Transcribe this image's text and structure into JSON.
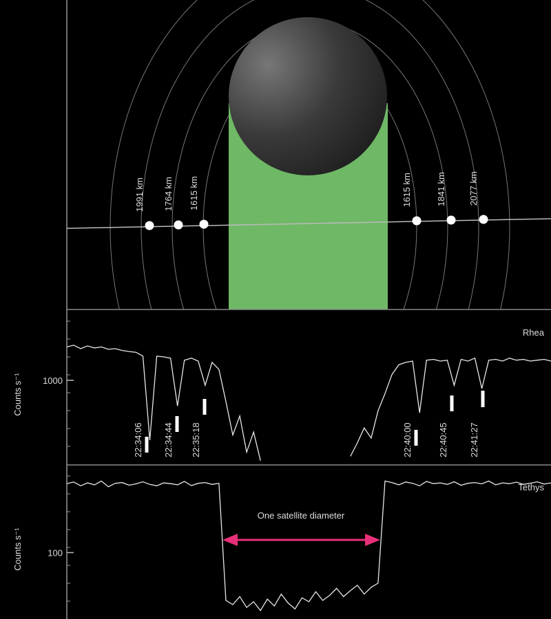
{
  "occultation_diagram": {
    "ingress_radii": [
      "1991 km",
      "1764 km",
      "1615 km"
    ],
    "egress_radii": [
      "1615 km",
      "1841 km",
      "2077 km"
    ]
  },
  "chart_data": [
    {
      "type": "line",
      "title": "Rhea",
      "title_color": "#f04a3c",
      "ylabel": "Counts s⁻¹",
      "log_scale": true,
      "ylim": [
        245,
        3200
      ],
      "yticks": [
        1000
      ],
      "series": [
        {
          "color": "#e8e8e8",
          "values": [
            1750,
            1800,
            1700,
            1780,
            1720,
            1750,
            1680,
            1700,
            1650,
            1620,
            1600,
            1500,
            367,
            1500,
            1480,
            1450,
            650,
            1400,
            1450,
            1380,
            920,
            1350,
            1200,
            700,
            400,
            550,
            300,
            420,
            260,
            null,
            null,
            null,
            null,
            null,
            null,
            null,
            null,
            null,
            null,
            null,
            null,
            280,
            350,
            450,
            380,
            600,
            800,
            1100,
            1300,
            1350,
            1380,
            580,
            1400,
            1420,
            1380,
            1400,
            920,
            1420,
            1380,
            1450,
            870,
            1400,
            1420,
            1380,
            1450,
            1400,
            1420,
            1380,
            1400,
            1420,
            1380
          ]
        }
      ],
      "annotations": [
        "22:34:06",
        "22:34:44",
        "22:35:18",
        "22:40:00",
        "22:40:45",
        "22:41:27"
      ]
    },
    {
      "type": "line",
      "title": "Tethys",
      "title_color": "#3c3cd8",
      "ylabel": "Counts s⁻¹",
      "log_scale": true,
      "ylim": [
        33,
        427
      ],
      "yticks": [
        100
      ],
      "series": [
        {
          "color": "#e8e8e8",
          "values": [
            316,
            325,
            305,
            320,
            310,
            330,
            300,
            318,
            322,
            308,
            315,
            326,
            312,
            305,
            320,
            316,
            310,
            328,
            306,
            318,
            322,
            312,
            318,
            45,
            42,
            48,
            40,
            44,
            38,
            46,
            41,
            50,
            43,
            39,
            47,
            44,
            52,
            45,
            49,
            55,
            48,
            53,
            58,
            50,
            56,
            60,
            330,
            322,
            310,
            325,
            318,
            305,
            328,
            316,
            320,
            312,
            326,
            308,
            318,
            322,
            315,
            330,
            310,
            320,
            316,
            324,
            312,
            318,
            326,
            314,
            320
          ]
        }
      ],
      "annotation": "One satellite diameter",
      "annotation_color": "#e8307a"
    }
  ]
}
